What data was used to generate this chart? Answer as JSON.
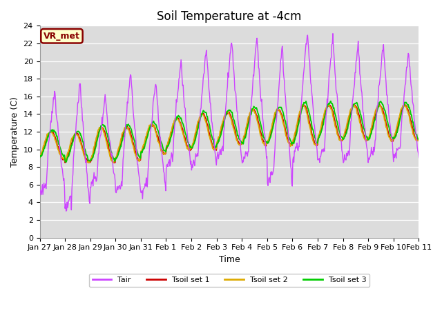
{
  "title": "Soil Temperature at -4cm",
  "xlabel": "Time",
  "ylabel": "Temperature (C)",
  "ylim": [
    0,
    24
  ],
  "bg_color": "#dcdcdc",
  "fig_bg": "#ffffff",
  "line_colors": {
    "Tair": "#cc44ff",
    "Tsoil1": "#cc0000",
    "Tsoil2": "#ddaa00",
    "Tsoil3": "#00cc00"
  },
  "legend_labels": [
    "Tair",
    "Tsoil set 1",
    "Tsoil set 2",
    "Tsoil set 3"
  ],
  "annotation_text": "VR_met",
  "annotation_bg": "#ffffcc",
  "annotation_border": "#880000",
  "xtick_labels": [
    "Jan 27",
    "Jan 28",
    "Jan 29",
    "Jan 30",
    "Jan 31",
    "Feb 1",
    "Feb 2",
    "Feb 3",
    "Feb 4",
    "Feb 5",
    "Feb 6",
    "Feb 7",
    "Feb 8",
    "Feb 9",
    "Feb 10",
    "Feb 11"
  ],
  "title_fontsize": 12,
  "axis_fontsize": 9,
  "tick_fontsize": 8
}
